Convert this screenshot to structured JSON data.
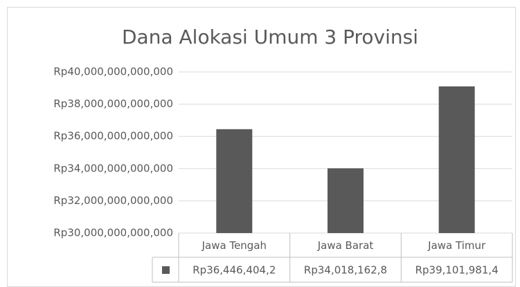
{
  "chart_data": {
    "type": "bar",
    "title": "Dana Alokasi Umum 3 Provinsi",
    "categories": [
      "Jawa Tengah",
      "Jawa Barat",
      "Jawa Timur"
    ],
    "values": [
      36446404200000,
      34018162800000,
      39101981400000
    ],
    "value_labels": [
      "Rp36,446,404,2",
      "Rp34,018,162,8",
      "Rp39,101,981,4"
    ],
    "color": "#595959",
    "ylim": [
      30000000000000,
      40000000000000
    ],
    "yticks": [
      {
        "value": 30000000000000,
        "label": "Rp30,000,000,000,000"
      },
      {
        "value": 32000000000000,
        "label": "Rp32,000,000,000,000"
      },
      {
        "value": 34000000000000,
        "label": "Rp34,000,000,000,000"
      },
      {
        "value": 36000000000000,
        "label": "Rp36,000,000,000,000"
      },
      {
        "value": 38000000000000,
        "label": "Rp38,000,000,000,000"
      },
      {
        "value": 40000000000000,
        "label": "Rp40,000,000,000,000"
      }
    ],
    "grid": true
  }
}
